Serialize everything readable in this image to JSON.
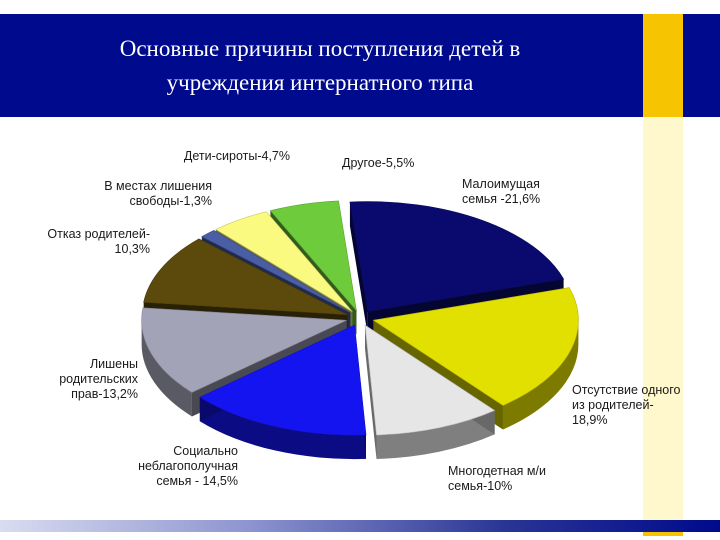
{
  "slide": {
    "title_line1": "Основные причины поступления детей в",
    "title_line2": "учреждения интернатного типа",
    "colors": {
      "title_band": "#000a8c",
      "accent": "#f6c400"
    }
  },
  "chart_data": {
    "type": "pie",
    "title": "",
    "slices": [
      {
        "label": [
          "Малоимущая",
          "семья -21,6%"
        ],
        "value": 21.6,
        "color": "#0a0a6e"
      },
      {
        "label": [
          "Отсутствие одного",
          "из родителей-",
          "18,9%"
        ],
        "value": 18.9,
        "color": "#e2e000"
      },
      {
        "label": [
          "Многодетная м/и",
          "семья-10%"
        ],
        "value": 10,
        "color": "#e6e6e6"
      },
      {
        "label": [
          "Социально",
          "неблагополучная",
          "семья - 14,5%"
        ],
        "value": 14.5,
        "color": "#1414f0"
      },
      {
        "label": [
          "Лишены",
          "родительских",
          "прав-13,2%"
        ],
        "value": 13.2,
        "color": "#a3a3b8"
      },
      {
        "label": [
          "Отказ родителей-",
          "10,3%"
        ],
        "value": 10.3,
        "color": "#5c4a0c"
      },
      {
        "label": [
          "В местах лишения",
          "свободы-1,3%"
        ],
        "value": 1.3,
        "color": "#4a5ea6"
      },
      {
        "label": [
          "Дети-сироты-4,7%"
        ],
        "value": 4.7,
        "color": "#fafa80"
      },
      {
        "label": [
          "Другое-5,5%"
        ],
        "value": 5.5,
        "color": "#6ecc3c"
      }
    ],
    "legend": "none",
    "style": "3d-exploded"
  }
}
